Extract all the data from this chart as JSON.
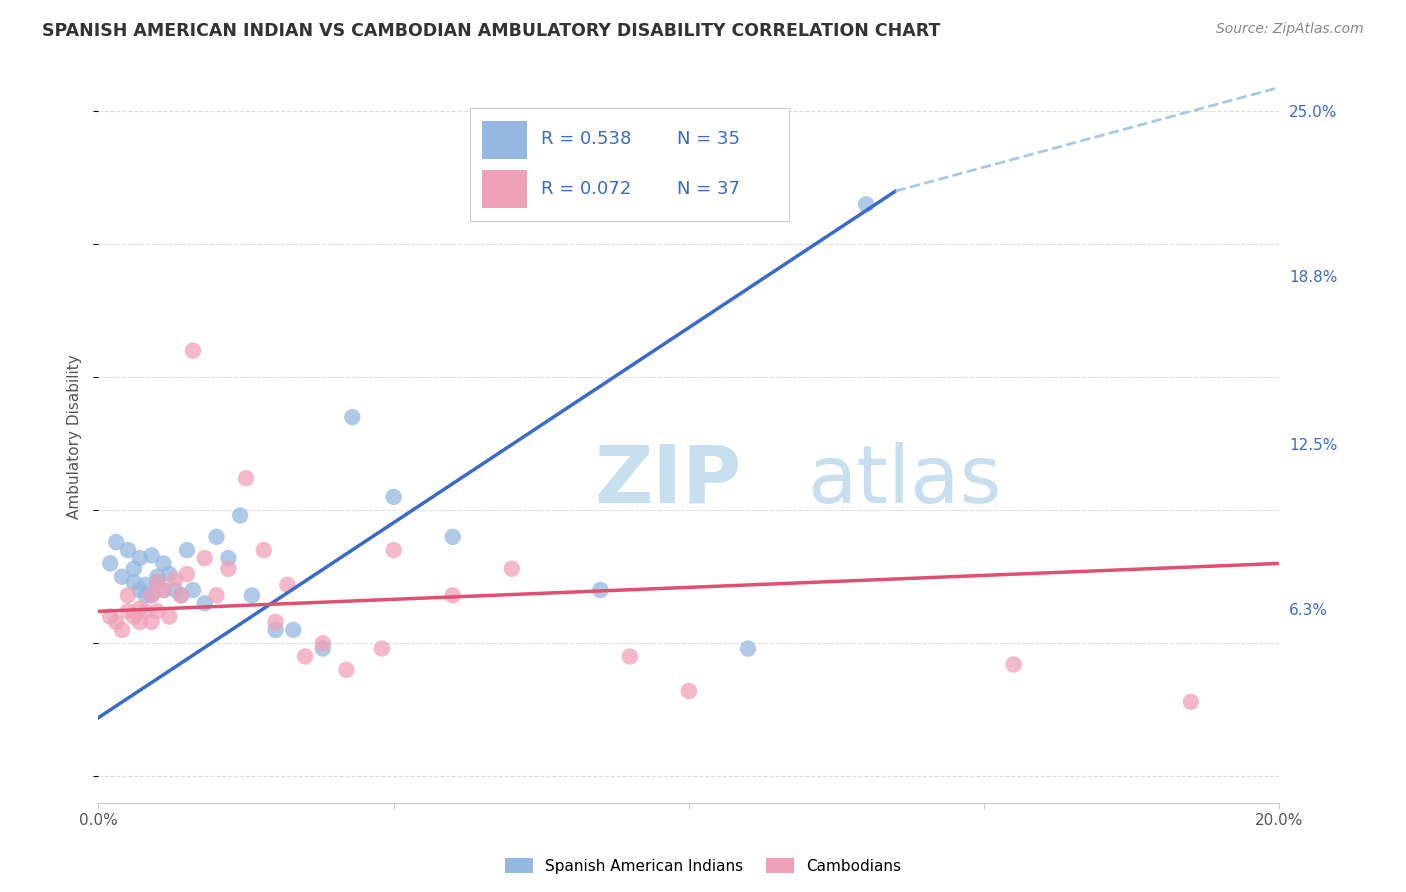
{
  "title": "SPANISH AMERICAN INDIAN VS CAMBODIAN AMBULATORY DISABILITY CORRELATION CHART",
  "source": "Source: ZipAtlas.com",
  "ylabel": "Ambulatory Disability",
  "xlim": [
    0.0,
    0.2
  ],
  "ylim": [
    -0.01,
    0.265
  ],
  "xticks": [
    0.0,
    0.05,
    0.1,
    0.15,
    0.2
  ],
  "xtick_labels": [
    "0.0%",
    "",
    "",
    "",
    "20.0%"
  ],
  "ytick_labels_right": [
    "25.0%",
    "18.8%",
    "12.5%",
    "6.3%"
  ],
  "ytick_vals_right": [
    0.25,
    0.188,
    0.125,
    0.063
  ],
  "blue_R": "0.538",
  "blue_N": "35",
  "pink_R": "0.072",
  "pink_N": "37",
  "blue_scatter_color": "#94B8E0",
  "pink_scatter_color": "#F0A0B8",
  "blue_line_color": "#3A6BC8",
  "pink_line_color": "#E05070",
  "dashed_line_color": "#A8C8E8",
  "watermark_text_color": "#C8DFF0",
  "background_color": "#FFFFFF",
  "grid_color": "#DDDDDD",
  "legend_label_blue": "Spanish American Indians",
  "legend_label_pink": "Cambodians",
  "blue_points_x": [
    0.002,
    0.003,
    0.004,
    0.005,
    0.006,
    0.006,
    0.007,
    0.007,
    0.008,
    0.008,
    0.009,
    0.009,
    0.01,
    0.01,
    0.011,
    0.011,
    0.012,
    0.013,
    0.014,
    0.015,
    0.016,
    0.018,
    0.02,
    0.022,
    0.024,
    0.026,
    0.03,
    0.033,
    0.038,
    0.043,
    0.05,
    0.06,
    0.085,
    0.11,
    0.13
  ],
  "blue_points_y": [
    0.08,
    0.088,
    0.075,
    0.085,
    0.078,
    0.073,
    0.082,
    0.07,
    0.072,
    0.068,
    0.083,
    0.068,
    0.075,
    0.073,
    0.07,
    0.08,
    0.076,
    0.07,
    0.068,
    0.085,
    0.07,
    0.065,
    0.09,
    0.082,
    0.098,
    0.068,
    0.055,
    0.055,
    0.048,
    0.135,
    0.105,
    0.09,
    0.07,
    0.048,
    0.215
  ],
  "pink_points_x": [
    0.002,
    0.003,
    0.004,
    0.005,
    0.005,
    0.006,
    0.007,
    0.007,
    0.008,
    0.009,
    0.009,
    0.01,
    0.01,
    0.011,
    0.012,
    0.013,
    0.014,
    0.015,
    0.016,
    0.018,
    0.02,
    0.022,
    0.025,
    0.028,
    0.03,
    0.032,
    0.035,
    0.038,
    0.042,
    0.048,
    0.05,
    0.06,
    0.07,
    0.09,
    0.1,
    0.155,
    0.185
  ],
  "pink_points_y": [
    0.06,
    0.058,
    0.055,
    0.062,
    0.068,
    0.06,
    0.058,
    0.063,
    0.062,
    0.068,
    0.058,
    0.073,
    0.062,
    0.07,
    0.06,
    0.074,
    0.068,
    0.076,
    0.16,
    0.082,
    0.068,
    0.078,
    0.112,
    0.085,
    0.058,
    0.072,
    0.045,
    0.05,
    0.04,
    0.048,
    0.085,
    0.068,
    0.078,
    0.045,
    0.032,
    0.042,
    0.028
  ],
  "blue_line_x": [
    0.0,
    0.135
  ],
  "blue_line_y": [
    0.022,
    0.22
  ],
  "pink_line_x": [
    0.0,
    0.2
  ],
  "pink_line_y": [
    0.062,
    0.08
  ],
  "dashed_line_x": [
    0.135,
    0.205
  ],
  "dashed_line_y": [
    0.22,
    0.262
  ]
}
